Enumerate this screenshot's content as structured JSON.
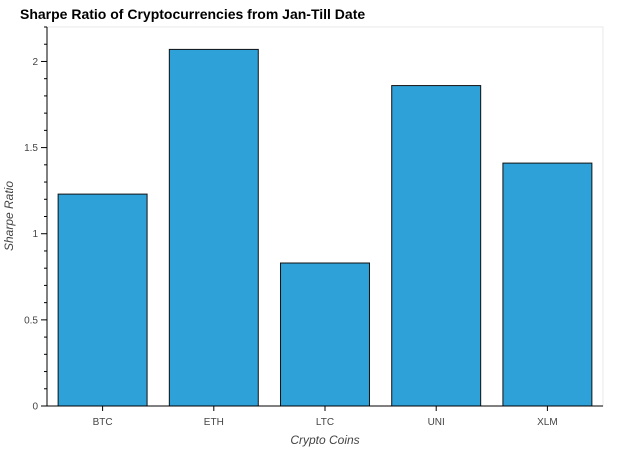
{
  "chart_data": {
    "type": "bar",
    "title": "Sharpe Ratio of Cryptocurrencies from Jan-Till Date",
    "xlabel": "Crypto Coins",
    "ylabel": "Sharpe Ratio",
    "categories": [
      "BTC",
      "ETH",
      "LTC",
      "UNI",
      "XLM"
    ],
    "values": [
      1.23,
      2.07,
      0.83,
      1.86,
      1.41
    ],
    "ylim": [
      0,
      2.2
    ],
    "yticks": [
      0,
      0.5,
      1,
      1.5,
      2
    ],
    "ytick_labels": [
      "0",
      "0.5",
      "1",
      "1.5",
      "2"
    ],
    "bar_color": "#2ea1d8",
    "bar_edge_color": "#111111",
    "grid": false,
    "legend": false
  }
}
